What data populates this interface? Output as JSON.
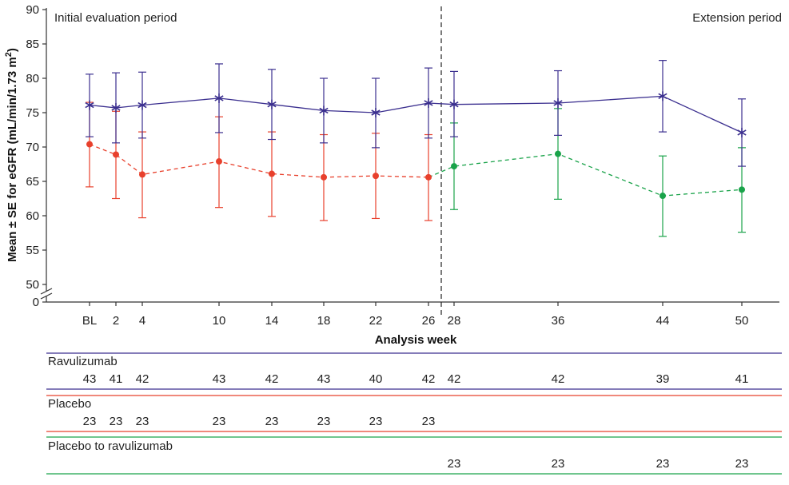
{
  "chart_data": {
    "type": "line",
    "ylabel": "Mean ± SE for eGFR (mL/min/1.73 m²)",
    "ylabel_parts": {
      "main": "Mean ± SE for eGFR (mL/min/1.73 m",
      "sup": "2",
      "end": ")"
    },
    "xlabel": "Analysis week",
    "x_ticks": [
      "BL",
      "2",
      "4",
      "10",
      "14",
      "18",
      "22",
      "26",
      "28",
      "36",
      "44",
      "50"
    ],
    "y_ticks": [
      "0",
      "50",
      "55",
      "60",
      "65",
      "70",
      "75",
      "80",
      "85",
      "90"
    ],
    "ylim": [
      50,
      90
    ],
    "y_axis_break": true,
    "period_divider_week": 27,
    "periods": {
      "initial": "Initial evaluation period",
      "extension": "Extension period"
    },
    "grid": false,
    "legend": "none",
    "series": [
      {
        "key": "ravulizumab",
        "color": "#3b2f8f",
        "marker": "star",
        "line": "solid",
        "x": [
          0,
          2,
          4,
          10,
          14,
          18,
          22,
          26,
          28,
          36,
          44,
          50
        ],
        "y": [
          76.1,
          75.7,
          76.1,
          77.1,
          76.2,
          75.3,
          75.0,
          76.4,
          76.2,
          76.4,
          77.4,
          72.1
        ],
        "err_low": [
          71.5,
          70.6,
          71.3,
          72.1,
          71.1,
          70.6,
          69.9,
          71.3,
          71.5,
          71.7,
          72.2,
          67.2
        ],
        "err_high": [
          80.6,
          80.8,
          80.9,
          82.1,
          81.3,
          80.0,
          80.0,
          81.5,
          81.0,
          81.1,
          82.6,
          77.0
        ]
      },
      {
        "key": "placebo",
        "color": "#e8402c",
        "marker": "circle",
        "line": "dashed",
        "x": [
          0,
          2,
          4,
          10,
          14,
          18,
          22,
          26
        ],
        "y": [
          70.4,
          68.9,
          66.0,
          67.9,
          66.1,
          65.6,
          65.8,
          65.6
        ],
        "err_low": [
          64.2,
          62.5,
          59.7,
          61.2,
          59.9,
          59.3,
          59.6,
          59.3
        ],
        "err_high": [
          76.5,
          75.2,
          72.2,
          74.4,
          72.2,
          71.8,
          72.0,
          71.8
        ]
      },
      {
        "key": "placebo_to_ravulizumab",
        "color": "#1aa34a",
        "marker": "circle",
        "line": "dashed",
        "x": [
          26,
          28,
          36,
          44,
          50
        ],
        "y": [
          65.6,
          67.2,
          69.0,
          62.9,
          63.8
        ],
        "err_low": [
          null,
          60.9,
          62.4,
          57.0,
          57.6
        ],
        "err_high": [
          null,
          73.5,
          75.6,
          68.7,
          69.9
        ]
      }
    ],
    "at_risk_table": [
      {
        "name": "Ravulizumab",
        "color": "#3b2f8f",
        "weeks": [
          0,
          2,
          4,
          10,
          14,
          18,
          22,
          26,
          28,
          36,
          44,
          50
        ],
        "counts": [
          "43",
          "41",
          "42",
          "43",
          "42",
          "43",
          "40",
          "42",
          "42",
          "42",
          "39",
          "41"
        ]
      },
      {
        "name": "Placebo",
        "color": "#e8402c",
        "weeks": [
          0,
          2,
          4,
          10,
          14,
          18,
          22,
          26
        ],
        "counts": [
          "23",
          "23",
          "23",
          "23",
          "23",
          "23",
          "23",
          "23"
        ]
      },
      {
        "name": "Placebo to ravulizumab",
        "color": "#1aa34a",
        "weeks": [
          28,
          36,
          44,
          50
        ],
        "counts": [
          "23",
          "23",
          "23",
          "23"
        ]
      }
    ]
  }
}
